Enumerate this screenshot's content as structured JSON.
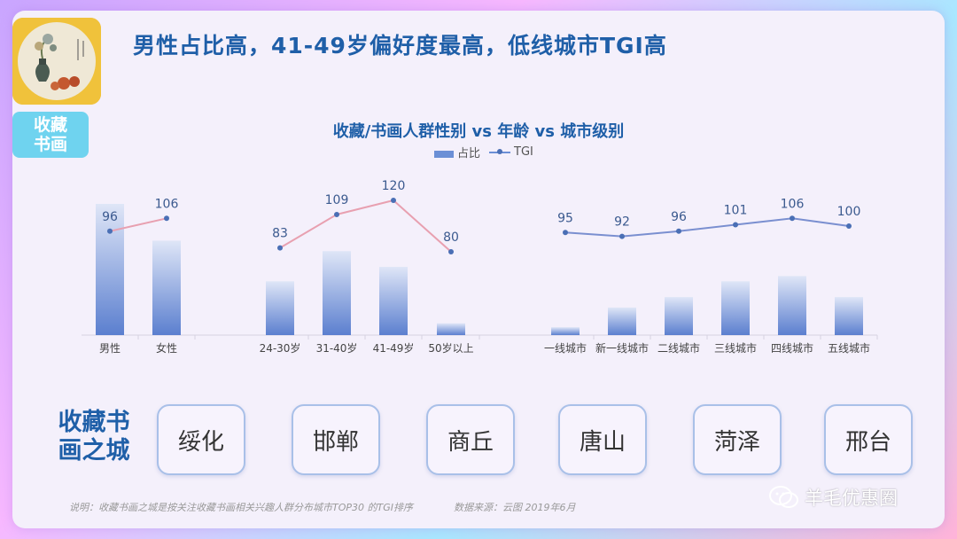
{
  "headline": "男性占比高，41-49岁偏好度最高，低线城市TGI高",
  "badge": {
    "line1": "收藏",
    "line2": "书画"
  },
  "chart_data": {
    "type": "bar",
    "title": "收藏/书画人群性别 vs 年龄 vs 城市级别",
    "legend": {
      "bar": "占比",
      "line": "TGI",
      "placement": "top-center"
    },
    "groups": [
      {
        "name": "gender",
        "categories": [
          "男性",
          "女性"
        ],
        "share_relative": [
          1.0,
          0.72
        ],
        "tgi": [
          96,
          106
        ]
      },
      {
        "name": "age",
        "categories": [
          "24-30岁",
          "31-40岁",
          "41-49岁",
          "50岁以上"
        ],
        "share_relative": [
          0.41,
          0.64,
          0.52,
          0.09
        ],
        "tgi": [
          83,
          109,
          120,
          80
        ]
      },
      {
        "name": "city",
        "categories": [
          "一线城市",
          "新一线城市",
          "二线城市",
          "三线城市",
          "四线城市",
          "五线城市"
        ],
        "share_relative": [
          0.06,
          0.21,
          0.29,
          0.41,
          0.45,
          0.29
        ],
        "tgi": [
          95,
          92,
          96,
          101,
          106,
          100
        ]
      }
    ],
    "colors": {
      "bar": "#6b8fd6",
      "line_gender_age": "#e8a0b0",
      "line_city": "#7a8fd0",
      "point": "#4a6fb5"
    }
  },
  "city_section": {
    "label_line1": "收藏书",
    "label_line2": "画之城",
    "cities": [
      "绥化",
      "邯郸",
      "商丘",
      "唐山",
      "菏泽",
      "邢台"
    ]
  },
  "note": "说明：收藏书画之城是按关注收藏书画相关兴趣人群分布城市TOP30 的TGI排序",
  "source": "数据来源：云图  2019年6月",
  "watermark": "羊毛优惠圈"
}
